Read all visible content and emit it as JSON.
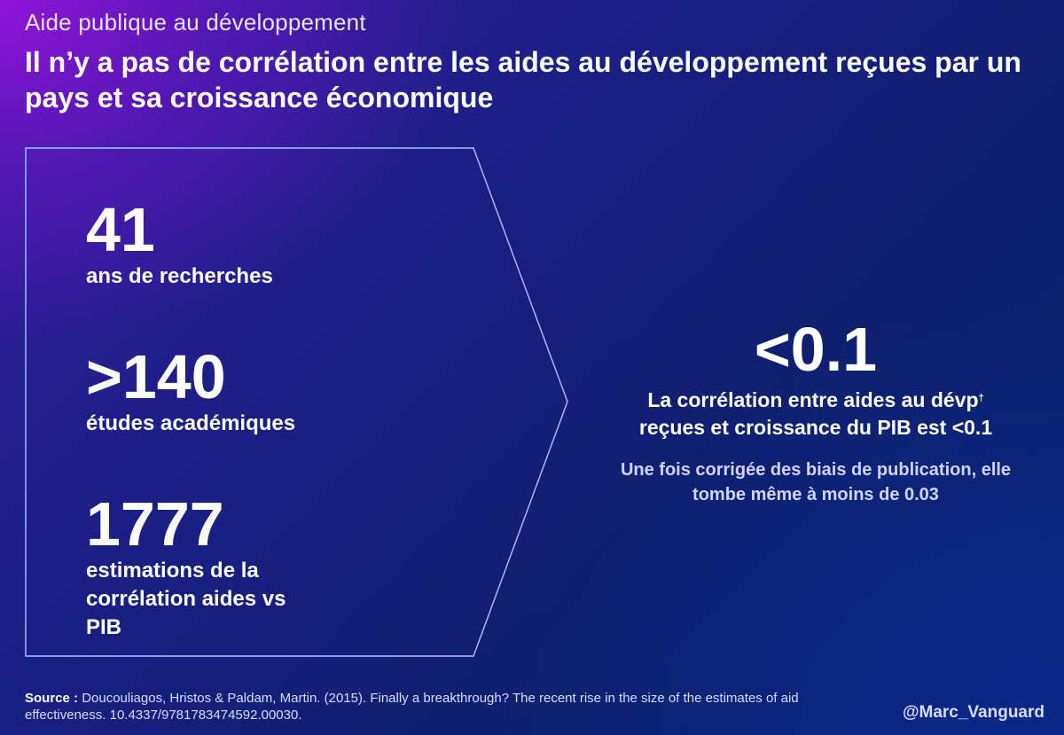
{
  "header": {
    "kicker": "Aide publique au développement",
    "headline": "Il n’y a pas de corrélation entre les aides au développement reçues par un pays et sa croissance économique"
  },
  "stats": [
    {
      "value": "41",
      "label": "ans de recherches"
    },
    {
      "value": ">140",
      "label": "études académiques"
    },
    {
      "value": "1777",
      "label": "estimations de la corrélation aides vs PIB"
    }
  ],
  "result": {
    "value": "<0.1",
    "main_text": "La corrélation entre aides au dévp",
    "main_sup": "†",
    "main_text_2": "reçues et croissance du PIB est <0.1",
    "note": "Une fois corrigée des biais de publication, elle tombe même à moins de 0.03"
  },
  "footer": {
    "source_label": "Source :",
    "source_text": "Doucouliagos, Hristos & Paldam, Martin. (2015). Finally a breakthrough? The recent rise in the size of the estimates of aid effectiveness. 10.4337/9781783474592.00030.",
    "handle": "@Marc_Vanguard"
  },
  "colors": {
    "chevron_stroke_start": "#8fd0ff",
    "chevron_stroke_end": "#c9b8ff"
  }
}
